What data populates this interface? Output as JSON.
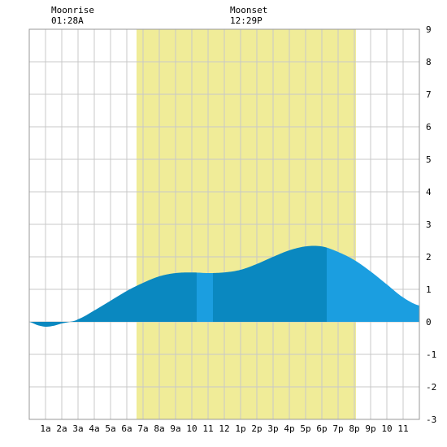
{
  "chart_data": {
    "type": "area",
    "x_tick_labels": [
      "1a",
      "2a",
      "3a",
      "4a",
      "5a",
      "6a",
      "7a",
      "8a",
      "9a",
      "10",
      "11",
      "12",
      "1p",
      "2p",
      "3p",
      "4p",
      "5p",
      "6p",
      "7p",
      "8p",
      "9p",
      "10",
      "11"
    ],
    "xlim": [
      0,
      24
    ],
    "ylim": [
      -3,
      9
    ],
    "y_ticks": [
      -3,
      -2,
      -1,
      0,
      1,
      2,
      3,
      4,
      5,
      6,
      7,
      8,
      9
    ],
    "y_axis_side": "right",
    "grid": true,
    "daylight_span": [
      6.6,
      20.1
    ],
    "daylight_color": "#f0ec98",
    "moonrise": {
      "label": "Moonrise",
      "time": "01:28A",
      "hour": 1.47
    },
    "moonset": {
      "label": "Moonset",
      "time": "12:29P",
      "hour": 12.48
    },
    "tide_series": {
      "hours": [
        0,
        0.5,
        1,
        1.5,
        2,
        2.5,
        3,
        4,
        5,
        6,
        7,
        8,
        9,
        10,
        11,
        12,
        13,
        14,
        15,
        16,
        17,
        18,
        19,
        20,
        21,
        22,
        23,
        24
      ],
      "heights": [
        0.0,
        -0.1,
        -0.15,
        -0.12,
        -0.05,
        0.0,
        0.08,
        0.35,
        0.65,
        0.95,
        1.2,
        1.4,
        1.5,
        1.52,
        1.5,
        1.52,
        1.6,
        1.78,
        2.0,
        2.2,
        2.32,
        2.32,
        2.15,
        1.9,
        1.55,
        1.15,
        0.75,
        0.5
      ]
    },
    "shading_bands": [
      {
        "from": 0,
        "to": 10.3,
        "color": "#0a88c0"
      },
      {
        "from": 10.3,
        "to": 11.3,
        "color": "#1b9ee0"
      },
      {
        "from": 11.3,
        "to": 18.3,
        "color": "#0a88c0"
      },
      {
        "from": 18.3,
        "to": 24,
        "color": "#1b9ee0"
      }
    ]
  }
}
